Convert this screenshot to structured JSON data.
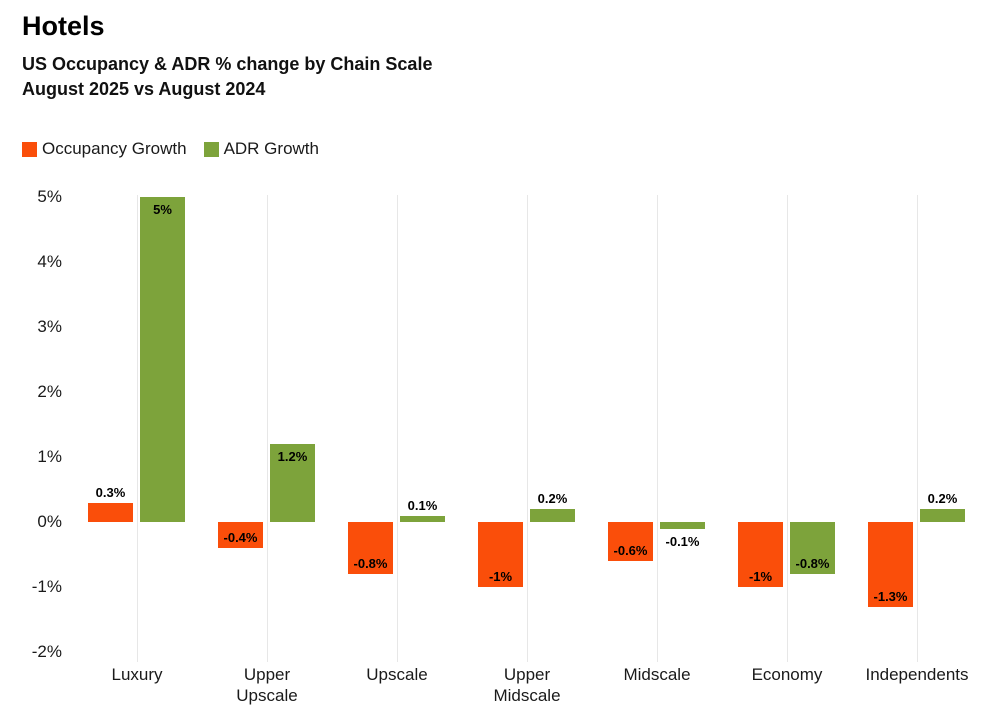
{
  "header": {
    "title": "Hotels",
    "subtitle_line1": "US Occupancy & ADR % change by Chain Scale",
    "subtitle_line2": "August 2025 vs August 2024"
  },
  "legend": {
    "items": [
      {
        "label": "Occupancy Growth",
        "color_key": "occupancy"
      },
      {
        "label": "ADR Growth",
        "color_key": "adr"
      }
    ]
  },
  "colors": {
    "occupancy": "#fa4e0a",
    "adr": "#7da33b",
    "grid_line": "#e7e7e7",
    "text": "#1a1a1a",
    "data_label": "#000000",
    "background": "#ffffff"
  },
  "chart_data": {
    "type": "bar",
    "title": "US Occupancy & ADR % change by Chain Scale",
    "subtitle": "August 2025 vs August 2024",
    "categories": [
      "Luxury",
      "Upper Upscale",
      "Upscale",
      "Upper Midscale",
      "Midscale",
      "Economy",
      "Independents"
    ],
    "category_display_labels": [
      "Luxury",
      "Upper\nUpscale",
      "Upscale",
      "Upper\nMidscale",
      "Midscale",
      "Economy",
      "Independents"
    ],
    "series": [
      {
        "name": "Occupancy Growth",
        "color_key": "occupancy",
        "values": [
          0.3,
          -0.4,
          -0.8,
          -1,
          -0.6,
          -1,
          -1.3
        ],
        "data_labels": [
          "0.3%",
          "-0.4%",
          "-0.8%",
          "-1%",
          "-0.6%",
          "-1%",
          "-1.3%"
        ]
      },
      {
        "name": "ADR Growth",
        "color_key": "adr",
        "values": [
          5,
          1.2,
          0.1,
          0.2,
          -0.1,
          -0.8,
          0.2
        ],
        "data_labels": [
          "5%",
          "1.2%",
          "0.1%",
          "0.2%",
          "-0.1%",
          "-0.8%",
          "0.2%"
        ]
      }
    ],
    "xlabel": "",
    "ylabel": "",
    "ylim": [
      -2,
      5
    ],
    "ytick_values": [
      5,
      4,
      3,
      2,
      1,
      0,
      -1,
      -2
    ],
    "ytick_labels": [
      "5%",
      "4%",
      "3%",
      "2%",
      "1%",
      "0%",
      "-1%",
      "-2%"
    ],
    "grid": "vertical gridline at each category center only",
    "legend_position": "top-left"
  }
}
